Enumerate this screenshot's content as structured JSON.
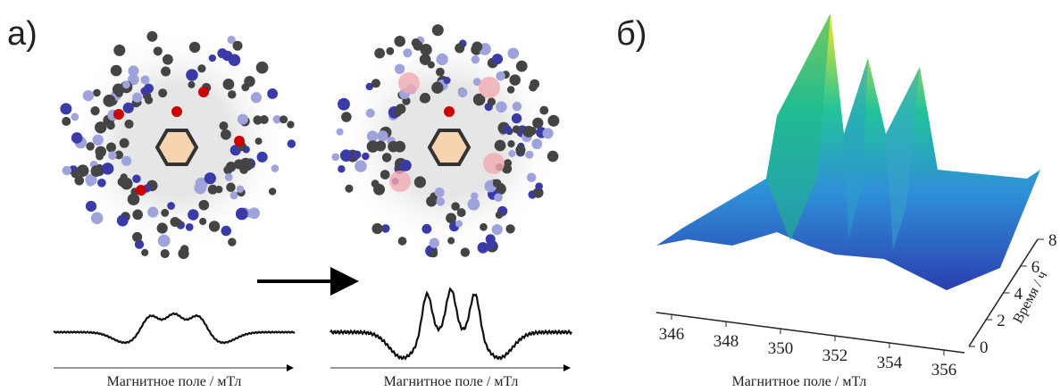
{
  "panel_a": {
    "label": "а)",
    "spectra": [
      {
        "x_label": "Магнитное поле / мТл"
      },
      {
        "x_label": "Магнитное поле / мТл"
      }
    ]
  },
  "panel_b": {
    "label": "б)",
    "x_label": "Магнитное поле / мТл",
    "y_label": "Время / ч",
    "xlim": [
      346,
      356
    ],
    "xticks": [
      346,
      348,
      350,
      352,
      354,
      356
    ],
    "ylim": [
      0,
      8
    ],
    "yticks": [
      0,
      2,
      4,
      6,
      8
    ]
  }
}
